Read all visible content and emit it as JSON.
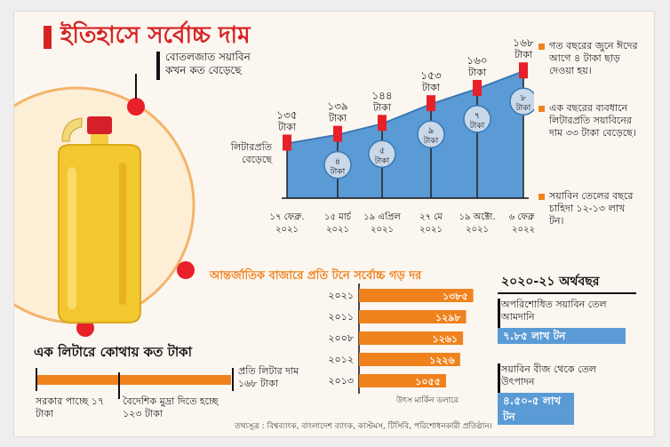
{
  "title": "ইতিহাসে সর্বোচ্চ দাম",
  "bottle_label": "বোতলজাত সয়াবিন কখন কত বেড়েছে",
  "increase_label": "লিটারপ্রতি বেড়েছে",
  "notes": [
    "গত বছরের জুনে ঈদের আগে ৪ টাকা ছাড় দেওয়া হয়।",
    "এক বছরের ব্যবধানে লিটারপ্রতি সয়াবিনের দাম ৩৩ টাকা বেড়েছে।",
    "সয়াবিন তেলের বছরে চাহিদা ১২-১৩ লাখ টন।"
  ],
  "chart_data": [
    {
      "type": "area",
      "categories": [
        "১৭ ফেব্রু. ২০২১",
        "১৫ মার্চ ২০২১",
        "১৯ এপ্রিল ২০২১",
        "২৭ মে ২০২১",
        "১৯ অক্টো. ২০২১",
        "৬ ফেব্রু. ২০২২"
      ],
      "values": [
        135,
        139,
        144,
        153,
        160,
        168
      ],
      "value_labels": [
        "১৩৫ টাকা",
        "১৩৯ টাকা",
        "১৪৪ টাকা",
        "১৫৩ টাকা",
        "১৬০ টাকা",
        "১৬৮ টাকা"
      ],
      "increase_labels": [
        "",
        "৪ টাকা",
        "৫ টাকা",
        "৯ টাকা",
        "৭ টাকা",
        "৮ টাকা"
      ],
      "ylim": [
        110,
        175
      ],
      "colors": {
        "area": "#5b9bd5",
        "marker": "#e8202a"
      }
    },
    {
      "type": "bar",
      "title": "আন্তর্জাতিক বাজারে প্রতি টনে সর্বোচ্চ গড় দর",
      "categories": [
        "২০২১",
        "২০১১",
        "২০০৮",
        "২০১২",
        "২০১৩"
      ],
      "values": [
        1385,
        1298,
        1261,
        1226,
        1055
      ],
      "value_labels": [
        "১৩৮৫",
        "১২৯৮",
        "১২৬১",
        "১২২৬",
        "১০৫৫"
      ],
      "unit": "উৎস মার্কিন ডলারে",
      "xlim": [
        0,
        1400
      ],
      "color": "#f0821e"
    }
  ],
  "fiscal_year": {
    "title": "২০২০-২১ অর্থবছর",
    "import_label": "অপরিশোধিত সয়াবিন তেল আমদানি",
    "import_value": "৭.৮৫ লাখ টন",
    "production_label": "সয়াবিন বীজ থেকে তেল উৎপাদন",
    "production_value": "৪.৫০-৫ লাখ টন",
    "color": "#5b9bd5"
  },
  "per_litre": {
    "title": "এক লিটারে কোথায় কত টাকা",
    "price_label": "প্রতি লিটার দাম ১৬৮ টাকা",
    "government_label": "সরকার পাচ্ছে ১৭ টাকা",
    "forex_label": "বৈদেশিক মুদ্রা দিতে হচ্ছে ১২৩ টাকা",
    "color": "#f0821e"
  },
  "source": "তথ্যসূত্র : বিশ্বব্যাংক, বাংলাদেশ ব্যাংক, কাস্টমস, টিসিবি, পরিশোধনকারী প্রতিষ্ঠান।"
}
